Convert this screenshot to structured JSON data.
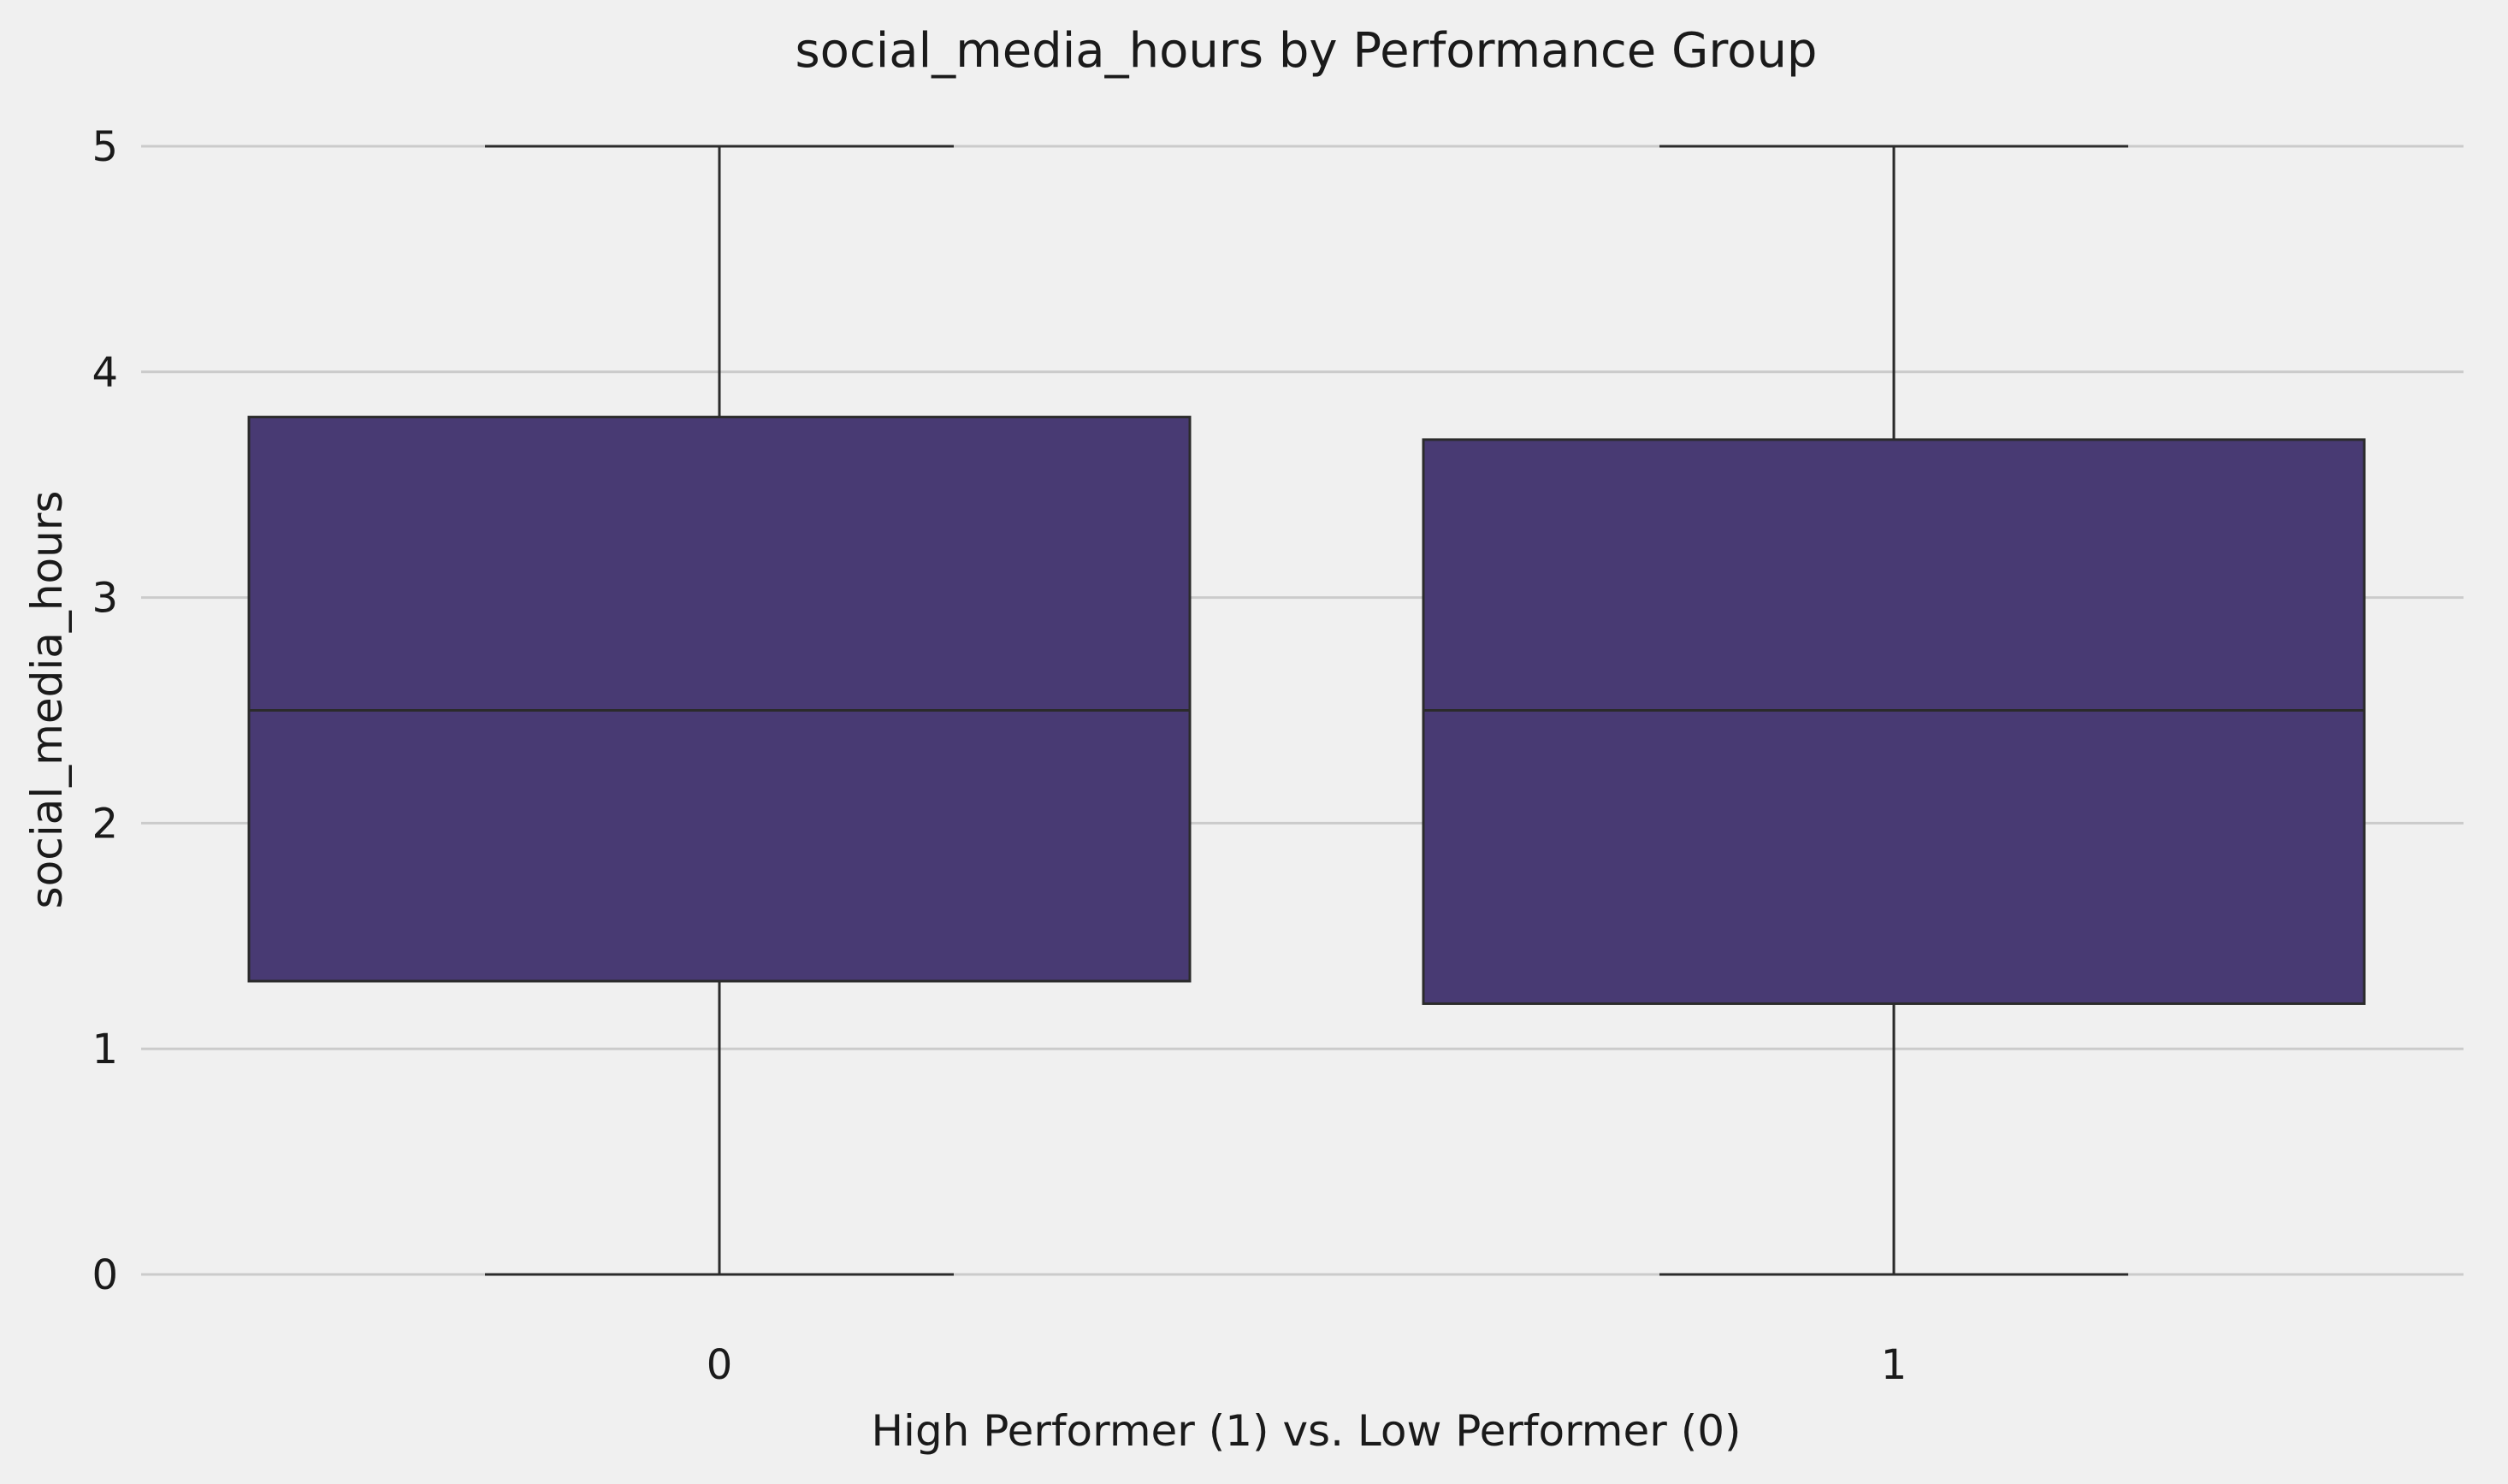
{
  "chart_data": {
    "type": "box",
    "title": "social_media_hours by Performance Group",
    "xlabel": "High Performer (1) vs. Low Performer (0)",
    "ylabel": "social_media_hours",
    "ylim": [
      -0.3,
      5.3
    ],
    "yticks": [
      0,
      1,
      2,
      3,
      4,
      5
    ],
    "ytick_labels": [
      "0",
      "1",
      "2",
      "3",
      "4",
      "5"
    ],
    "grid": "horizontal",
    "box_color": "#483a73",
    "groups": [
      {
        "category": "0",
        "whisker_low": 0,
        "q1": 1.3,
        "median": 2.5,
        "q3": 3.8,
        "whisker_high": 5
      },
      {
        "category": "1",
        "whisker_low": 0,
        "q1": 1.2,
        "median": 2.5,
        "q3": 3.7,
        "whisker_high": 5
      }
    ]
  }
}
